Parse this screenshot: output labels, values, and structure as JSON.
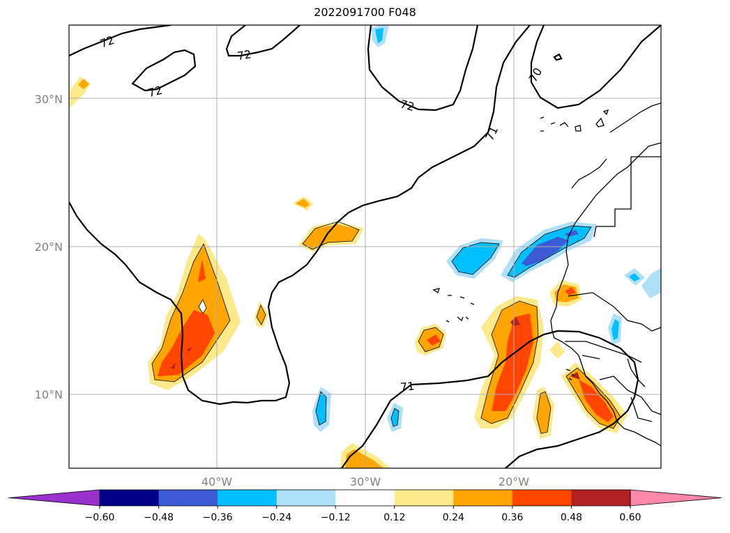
{
  "title": "2022091700 F048",
  "map": {
    "lat_ticks": [
      "30°N",
      "20°N",
      "10°N"
    ],
    "lon_ticks": [
      "40°W",
      "30°W",
      "20°W"
    ],
    "contour_labels": [
      "72",
      "72",
      "72",
      "72",
      "71",
      "70",
      "71"
    ],
    "grid": true
  },
  "colorbar": {
    "ticks": [
      "−0.60",
      "−0.48",
      "−0.36",
      "−0.24",
      "−0.12",
      "0.12",
      "0.24",
      "0.36",
      "0.48",
      "0.60"
    ],
    "colors": [
      "#9932cc",
      "#00008b",
      "#3b5bd6",
      "#00bfff",
      "#aee0f8",
      "#ffffff",
      "#fbe98a",
      "#ffa500",
      "#ff4500",
      "#b22222",
      "#ff88aa"
    ]
  }
}
